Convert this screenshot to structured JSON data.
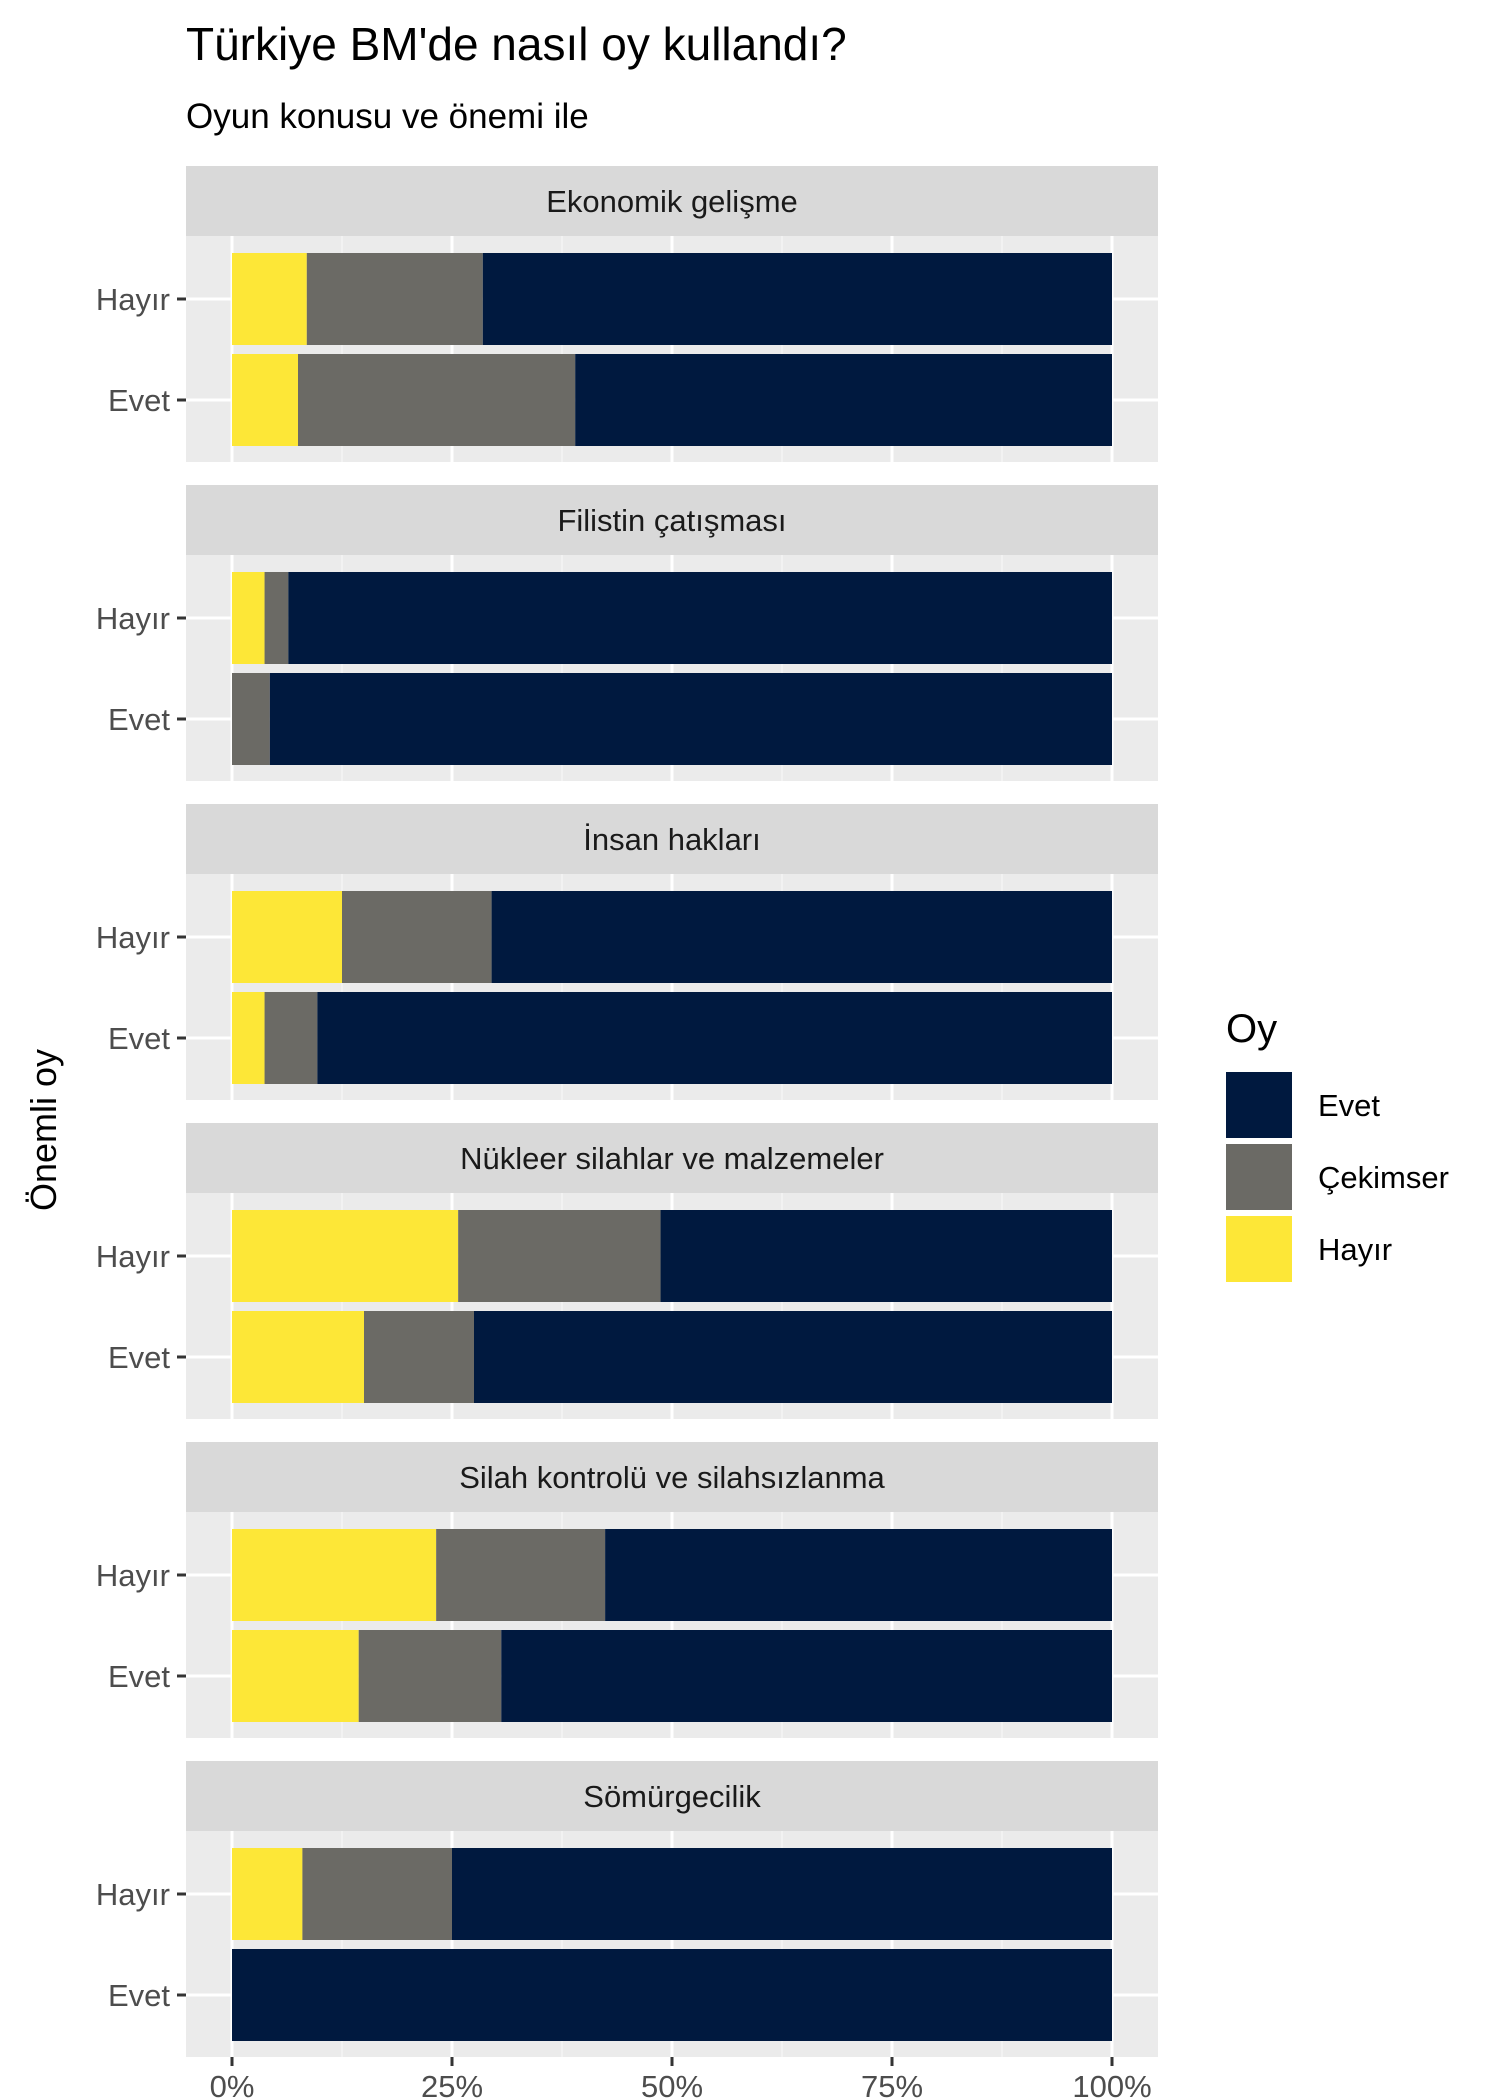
{
  "chart_data": {
    "type": "bar",
    "orientation": "horizontal",
    "stacked": "fill",
    "title": "Türkiye BM'de nasıl oy kullandı?",
    "subtitle": "Oyun konusu ve önemi ile",
    "ylabel": "Önemli oy",
    "xlabel": "",
    "xlim": [
      0,
      1
    ],
    "x_ticks": [
      {
        "value": 0,
        "label": "0%"
      },
      {
        "value": 0.25,
        "label": "25%"
      },
      {
        "value": 0.5,
        "label": "50%"
      },
      {
        "value": 0.75,
        "label": "75%"
      },
      {
        "value": 1,
        "label": "100%"
      }
    ],
    "categories": [
      "Hayır",
      "Evet"
    ],
    "legend": {
      "title": "Oy",
      "position": "right",
      "items": [
        {
          "label": "Evet",
          "color": "#00193F"
        },
        {
          "label": "Çekimser",
          "color": "#6B6A65"
        },
        {
          "label": "Hayır",
          "color": "#FDE737"
        }
      ]
    },
    "stack_order": [
      "Hayır",
      "Çekimser",
      "Evet"
    ],
    "colors": {
      "Evet": "#00193F",
      "Çekimser": "#6B6A65",
      "Hayır": "#FDE737"
    },
    "panels": [
      {
        "title": "Ekonomik gelişme",
        "rows": [
          {
            "label": "Hayır",
            "values": {
              "Hayır": 0.085,
              "Çekimser": 0.2,
              "Evet": 0.715
            }
          },
          {
            "label": "Evet",
            "values": {
              "Hayır": 0.075,
              "Çekimser": 0.315,
              "Evet": 0.61
            }
          }
        ]
      },
      {
        "title": "Filistin çatışması",
        "rows": [
          {
            "label": "Hayır",
            "values": {
              "Hayır": 0.037,
              "Çekimser": 0.027,
              "Evet": 0.936
            }
          },
          {
            "label": "Evet",
            "values": {
              "Hayır": 0.0,
              "Çekimser": 0.043,
              "Evet": 0.957
            }
          }
        ]
      },
      {
        "title": "İnsan hakları",
        "rows": [
          {
            "label": "Hayır",
            "values": {
              "Hayır": 0.125,
              "Çekimser": 0.17,
              "Evet": 0.705
            }
          },
          {
            "label": "Evet",
            "values": {
              "Hayır": 0.037,
              "Çekimser": 0.06,
              "Evet": 0.903
            }
          }
        ]
      },
      {
        "title": "Nükleer silahlar ve malzemeler",
        "rows": [
          {
            "label": "Hayır",
            "values": {
              "Hayır": 0.257,
              "Çekimser": 0.23,
              "Evet": 0.513
            }
          },
          {
            "label": "Evet",
            "values": {
              "Hayır": 0.15,
              "Çekimser": 0.125,
              "Evet": 0.725
            }
          }
        ]
      },
      {
        "title": "Silah kontrolü ve silahsızlanma",
        "rows": [
          {
            "label": "Hayır",
            "values": {
              "Hayır": 0.232,
              "Çekimser": 0.192,
              "Evet": 0.576
            }
          },
          {
            "label": "Evet",
            "values": {
              "Hayır": 0.144,
              "Çekimser": 0.162,
              "Evet": 0.694
            }
          }
        ]
      },
      {
        "title": "Sömürgecilik",
        "rows": [
          {
            "label": "Hayır",
            "values": {
              "Hayır": 0.08,
              "Çekimser": 0.17,
              "Evet": 0.75
            }
          },
          {
            "label": "Evet",
            "values": {
              "Hayır": 0.0,
              "Çekimser": 0.0,
              "Evet": 1.0
            }
          }
        ]
      }
    ]
  }
}
